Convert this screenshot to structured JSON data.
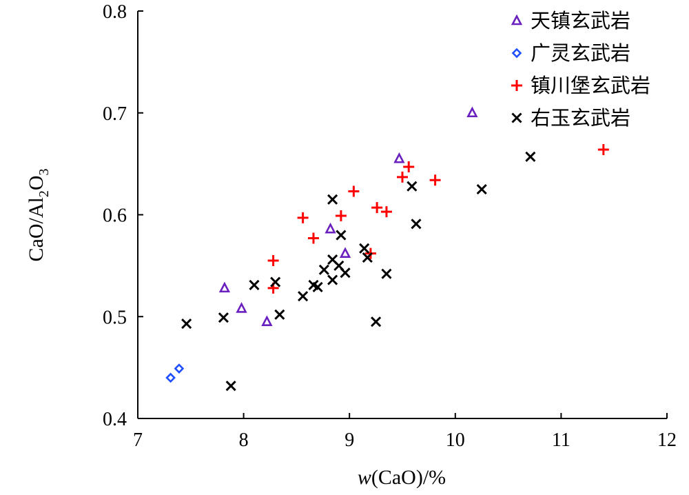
{
  "chart_data": {
    "type": "scatter",
    "xlabel_italic": "w",
    "xlabel_rest": "(CaO)/%",
    "ylabel_main": "CaO/Al",
    "ylabel_sub1": "2",
    "ylabel_mid": "O",
    "ylabel_sub2": "3",
    "xlim": [
      7,
      12
    ],
    "ylim": [
      0.4,
      0.8
    ],
    "xticks": [
      7,
      8,
      9,
      10,
      11,
      12
    ],
    "yticks": [
      0.4,
      0.5,
      0.6,
      0.7,
      0.8
    ],
    "xtick_labels": [
      "7",
      "8",
      "9",
      "10",
      "11",
      "12"
    ],
    "ytick_labels": [
      "0.4",
      "0.5",
      "0.6",
      "0.7",
      "0.8"
    ],
    "legend_position": "top-right",
    "series": [
      {
        "name": "天镇玄武岩",
        "marker": "triangle",
        "color": "#6a1fbf",
        "points": [
          [
            7.82,
            0.528
          ],
          [
            7.98,
            0.508
          ],
          [
            8.22,
            0.495
          ],
          [
            8.82,
            0.586
          ],
          [
            8.96,
            0.562
          ],
          [
            9.47,
            0.655
          ],
          [
            10.16,
            0.7
          ]
        ]
      },
      {
        "name": "广灵玄武岩",
        "marker": "diamond",
        "color": "#1f4fff",
        "points": [
          [
            7.31,
            0.44
          ],
          [
            7.39,
            0.449
          ]
        ]
      },
      {
        "name": "镇川堡玄武岩",
        "marker": "plus",
        "color": "#ff0000",
        "points": [
          [
            8.28,
            0.555
          ],
          [
            8.28,
            0.528
          ],
          [
            8.56,
            0.597
          ],
          [
            8.66,
            0.577
          ],
          [
            8.92,
            0.599
          ],
          [
            9.04,
            0.623
          ],
          [
            9.2,
            0.562
          ],
          [
            9.26,
            0.607
          ],
          [
            9.35,
            0.603
          ],
          [
            9.5,
            0.637
          ],
          [
            9.56,
            0.647
          ],
          [
            9.81,
            0.634
          ],
          [
            11.4,
            0.664
          ]
        ]
      },
      {
        "name": "右玉玄武岩",
        "marker": "x",
        "color": "#000000",
        "points": [
          [
            7.46,
            0.493
          ],
          [
            7.81,
            0.499
          ],
          [
            7.88,
            0.432
          ],
          [
            8.1,
            0.531
          ],
          [
            8.3,
            0.534
          ],
          [
            8.34,
            0.502
          ],
          [
            8.56,
            0.52
          ],
          [
            8.66,
            0.531
          ],
          [
            8.7,
            0.529
          ],
          [
            8.76,
            0.546
          ],
          [
            8.84,
            0.556
          ],
          [
            8.84,
            0.536
          ],
          [
            8.84,
            0.615
          ],
          [
            8.9,
            0.55
          ],
          [
            8.92,
            0.58
          ],
          [
            8.96,
            0.543
          ],
          [
            9.14,
            0.567
          ],
          [
            9.17,
            0.558
          ],
          [
            9.25,
            0.495
          ],
          [
            9.35,
            0.542
          ],
          [
            9.59,
            0.628
          ],
          [
            9.63,
            0.591
          ],
          [
            10.25,
            0.625
          ],
          [
            10.71,
            0.657
          ]
        ]
      }
    ]
  }
}
